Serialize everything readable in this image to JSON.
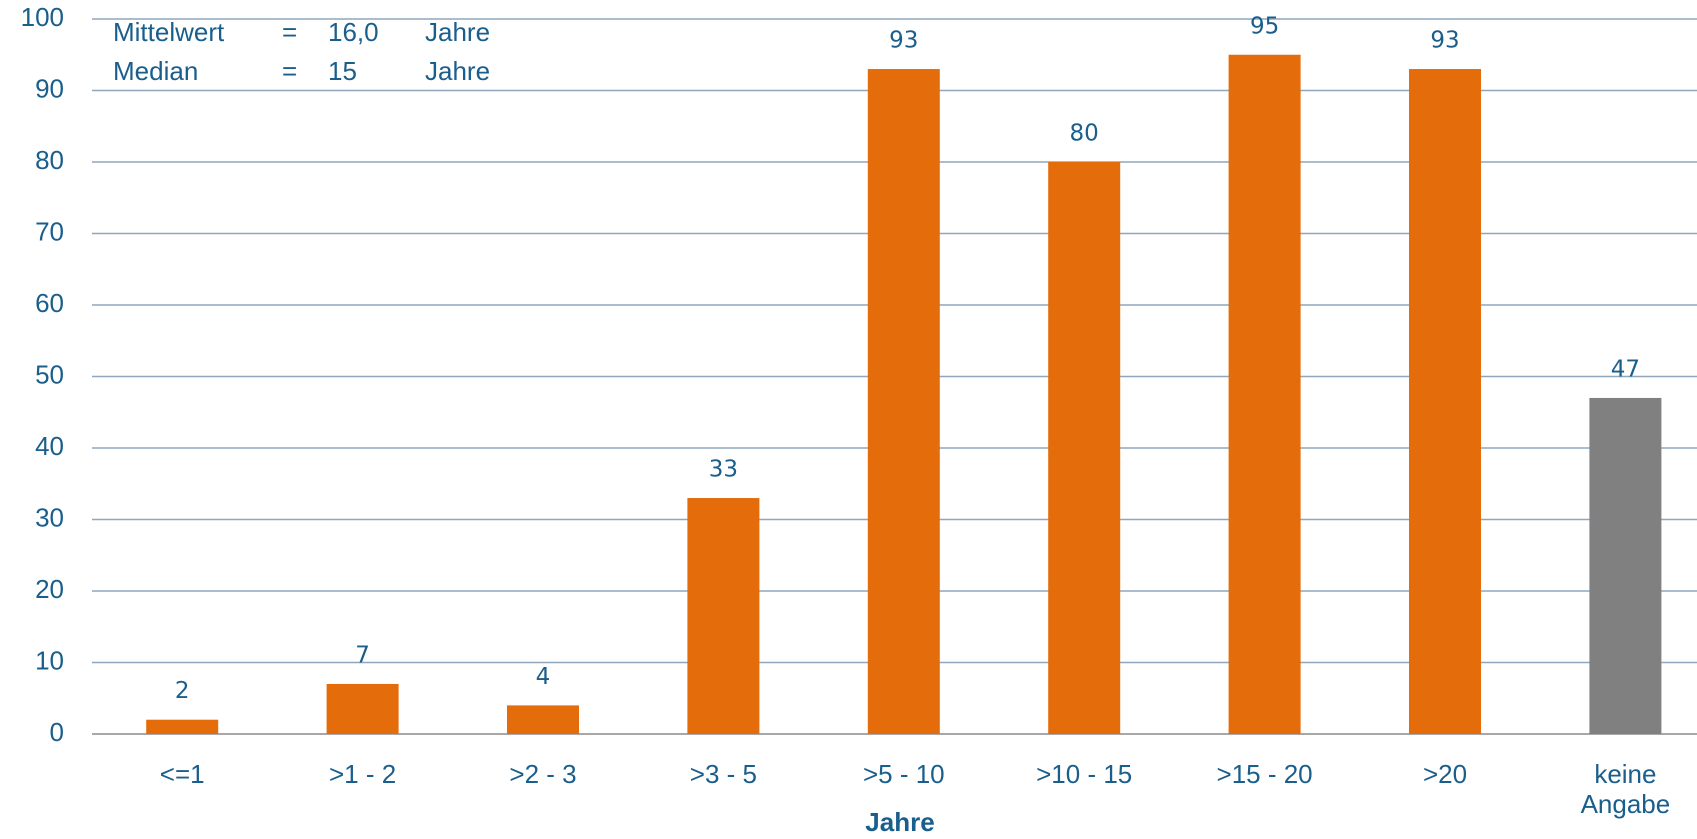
{
  "chart_data": {
    "type": "bar",
    "categories": [
      "<=1",
      ">1 - 2",
      ">2 - 3",
      ">3 - 5",
      ">5 - 10",
      ">10 - 15",
      ">15 - 20",
      ">20",
      "keine\nAngabe"
    ],
    "values": [
      2,
      7,
      4,
      33,
      93,
      80,
      95,
      93,
      47
    ],
    "colors": [
      "#e46c0a",
      "#e46c0a",
      "#e46c0a",
      "#e46c0a",
      "#e46c0a",
      "#e46c0a",
      "#e46c0a",
      "#e46c0a",
      "#808080"
    ],
    "x_label": "Jahre",
    "annotations": [
      [
        "Mittelwert",
        "=",
        "16,0",
        "Jahre"
      ],
      [
        "Median",
        "=",
        "15",
        "Jahre"
      ]
    ],
    "ylim": [
      0,
      100
    ],
    "yticks": [
      0,
      10,
      20,
      30,
      40,
      50,
      60,
      70,
      80,
      90,
      100
    ],
    "grid": true
  }
}
